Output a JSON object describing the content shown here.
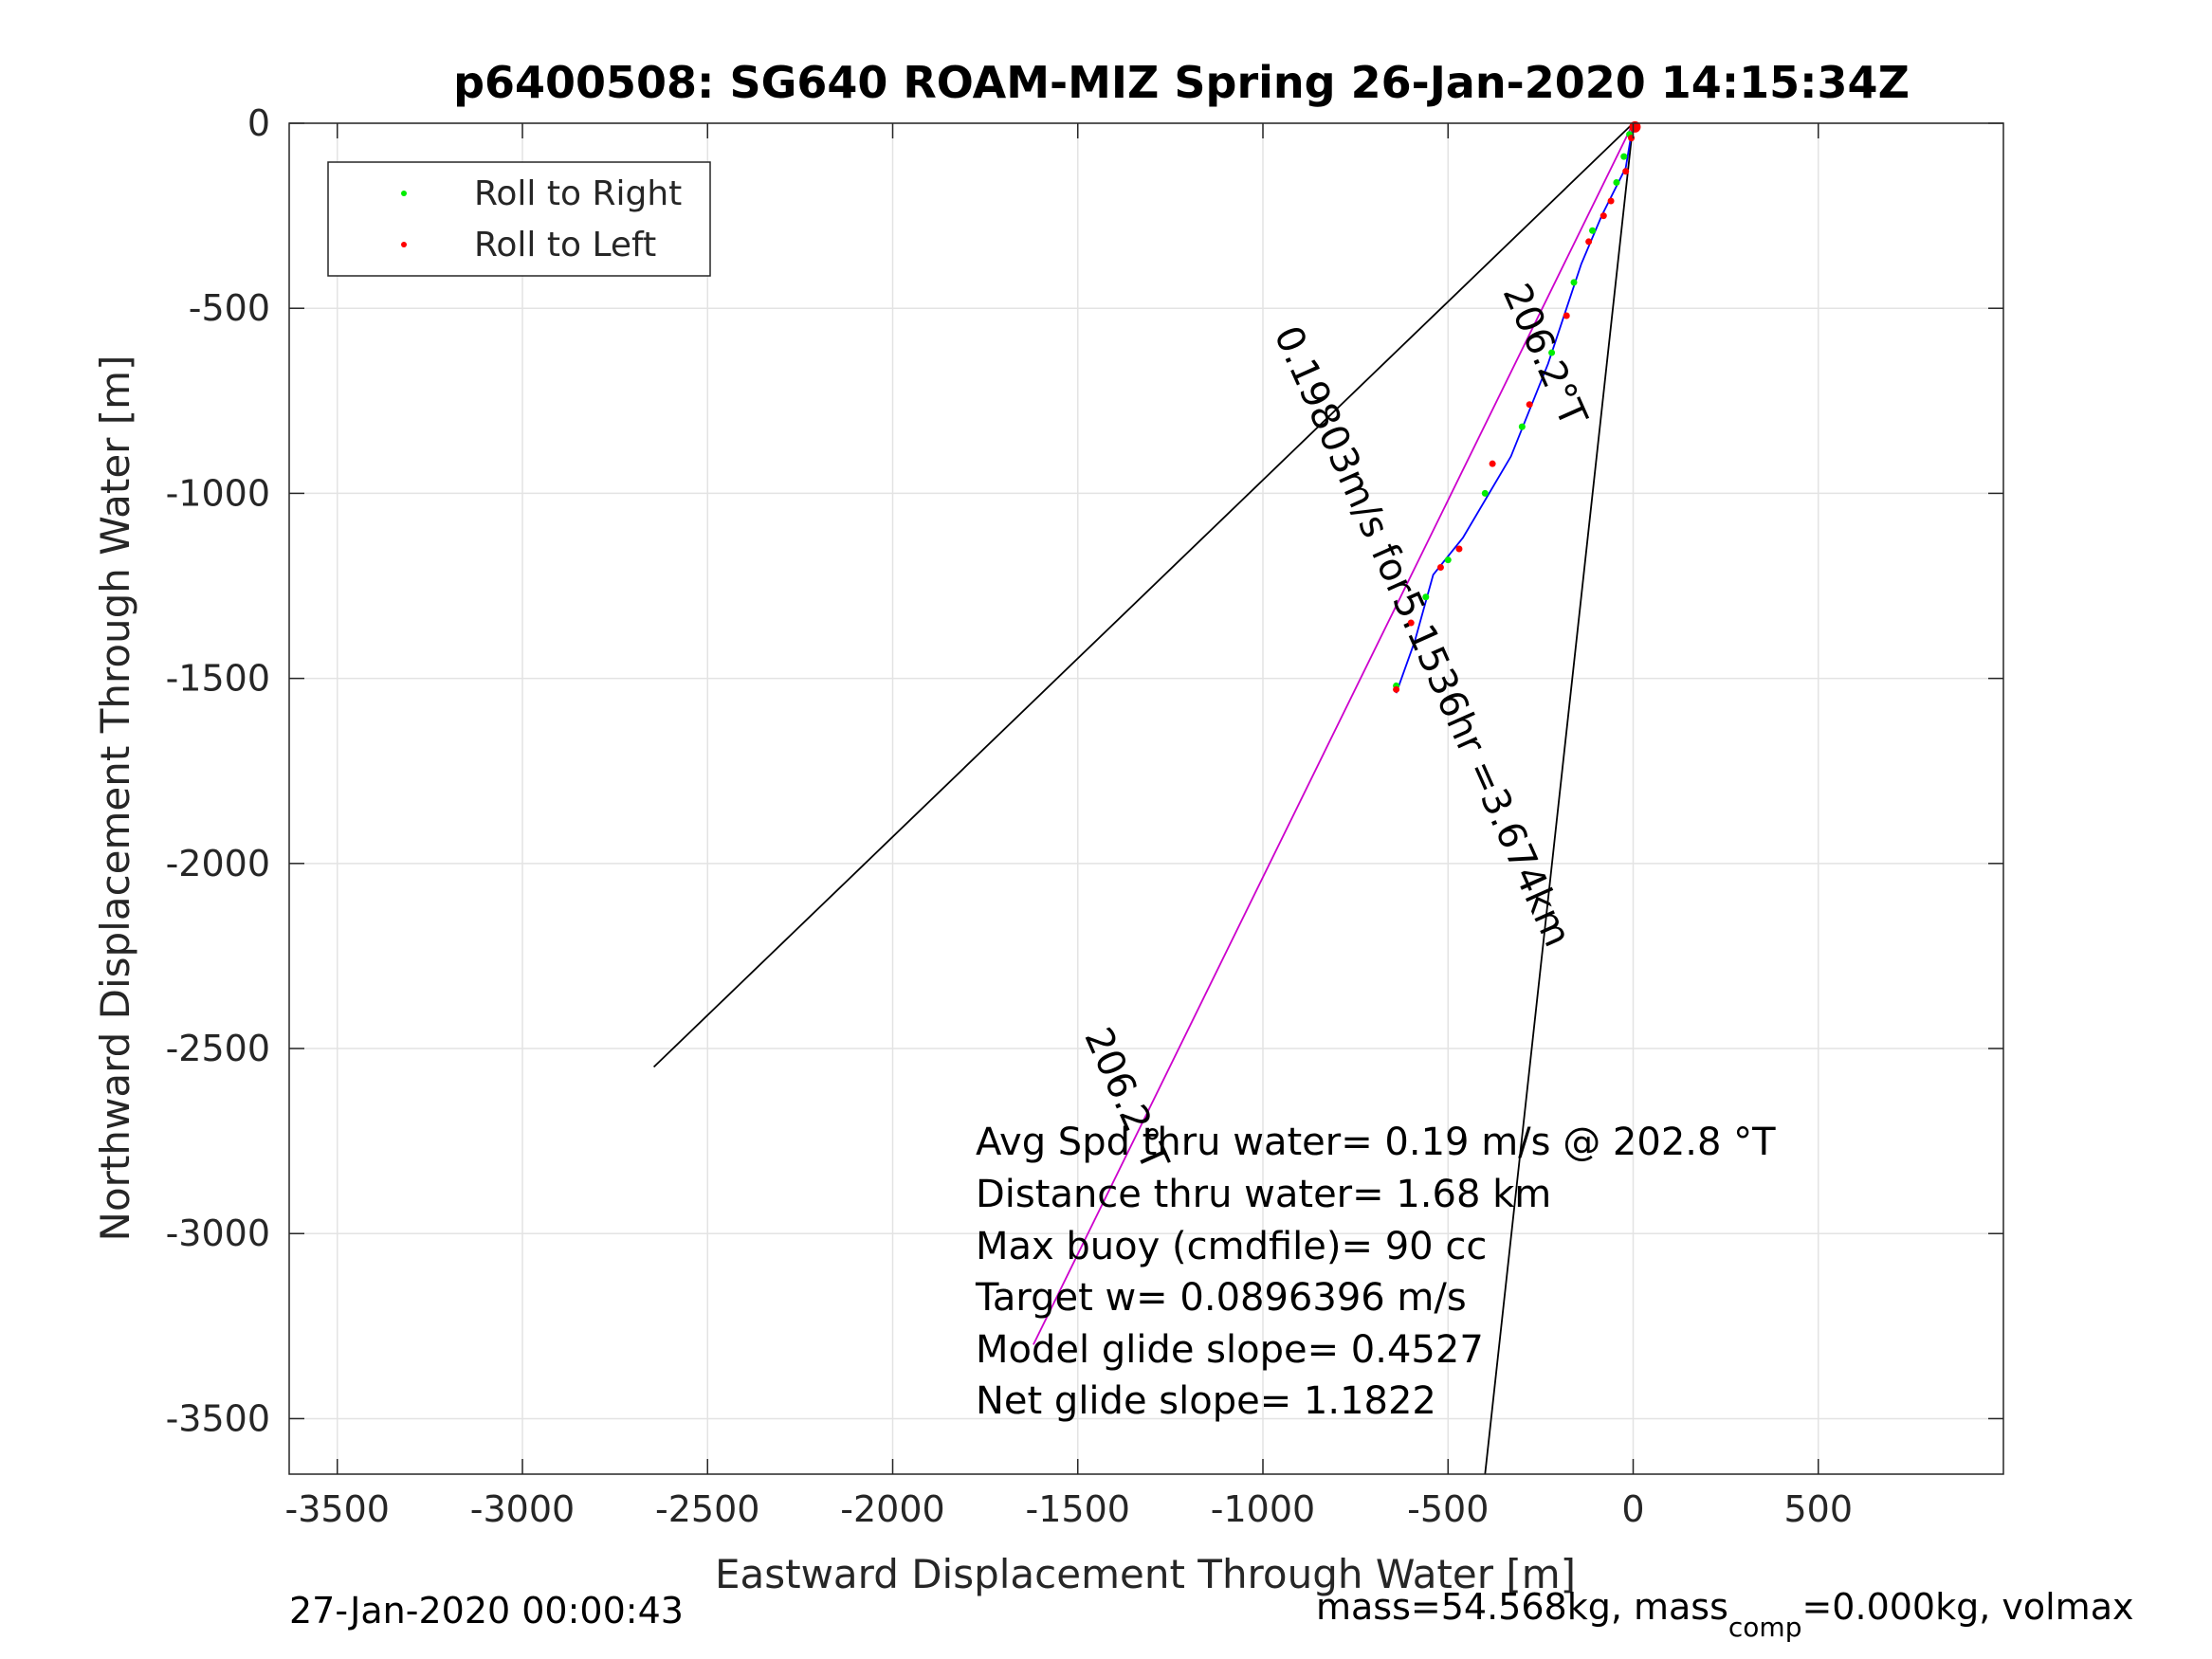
{
  "chart_data": {
    "type": "scatter",
    "title": "p6400508: SG640 ROAM-MIZ Spring 26-Jan-2020 14:15:34Z",
    "xlabel": "Eastward Displacement Through Water [m]",
    "ylabel": "Northward Displacement Through Water [m]",
    "xlim": [
      -3630,
      1000
    ],
    "ylim": [
      -3650,
      0
    ],
    "xticks": [
      -3500,
      -3000,
      -2500,
      -2000,
      -1500,
      -1000,
      -500,
      0,
      500
    ],
    "yticks": [
      0,
      -500,
      -1000,
      -1500,
      -2000,
      -2500,
      -3000,
      -3500
    ],
    "grid": true,
    "legend_position": "top-left",
    "legend": [
      {
        "label": "Roll to Right",
        "color": "#00ee00"
      },
      {
        "label": "Roll to Left",
        "color": "#ff0000"
      }
    ],
    "lines": [
      {
        "color": "#000000",
        "points": [
          [
            0,
            0
          ],
          [
            -2645,
            -2550
          ]
        ]
      },
      {
        "color": "#000000",
        "points": [
          [
            0,
            0
          ],
          [
            -400,
            -3650
          ]
        ]
      },
      {
        "color": "#cc00cc",
        "points": [
          [
            0,
            0
          ],
          [
            -1620,
            -3300
          ]
        ]
      },
      {
        "color": "#0000ff",
        "points": [
          [
            0,
            0
          ],
          [
            -20,
            -120
          ],
          [
            -85,
            -250
          ],
          [
            -140,
            -380
          ],
          [
            -230,
            -650
          ],
          [
            -330,
            -900
          ],
          [
            -460,
            -1120
          ],
          [
            -540,
            -1220
          ],
          [
            -590,
            -1400
          ],
          [
            -640,
            -1540
          ]
        ]
      }
    ],
    "roll_right_points": [
      [
        -10,
        -30
      ],
      [
        -25,
        -90
      ],
      [
        -45,
        -160
      ],
      [
        -110,
        -290
      ],
      [
        -160,
        -430
      ],
      [
        -220,
        -620
      ],
      [
        -300,
        -820
      ],
      [
        -400,
        -1000
      ],
      [
        -500,
        -1180
      ],
      [
        -560,
        -1280
      ],
      [
        -640,
        -1520
      ]
    ],
    "roll_left_points": [
      [
        5,
        -10
      ],
      [
        -5,
        -40
      ],
      [
        -20,
        -130
      ],
      [
        -60,
        -210
      ],
      [
        -80,
        -250
      ],
      [
        -120,
        -320
      ],
      [
        -180,
        -520
      ],
      [
        -280,
        -760
      ],
      [
        -380,
        -920
      ],
      [
        -470,
        -1150
      ],
      [
        -520,
        -1200
      ],
      [
        -600,
        -1350
      ],
      [
        -640,
        -1530
      ]
    ],
    "rotated_labels": [
      {
        "text": "206.2°T",
        "x": -270,
        "y": -640,
        "angle": 66
      },
      {
        "text": "0.19803m/s for5.1536hr =3.674km",
        "x": -600,
        "y": -1400,
        "angle": 66
      },
      {
        "text": "206.2°T",
        "x": -1400,
        "y": -2650,
        "angle": 66
      }
    ],
    "annotations": [
      "Avg Spd thru water=  0.19 m/s @ 202.8 °T",
      "Distance thru water=  1.68 km",
      "Max buoy (cmdfile)= 90 cc",
      "Target w= 0.0896396 m/s",
      "Model glide slope= 0.4527",
      "Net glide slope= 1.1822"
    ]
  },
  "footer": {
    "timestamp": "27-Jan-2020 00:00:43",
    "mass_prefix": "mass=54.568kg, mass",
    "mass_sub": "comp",
    "mass_suffix": "=0.000kg, volmax"
  }
}
